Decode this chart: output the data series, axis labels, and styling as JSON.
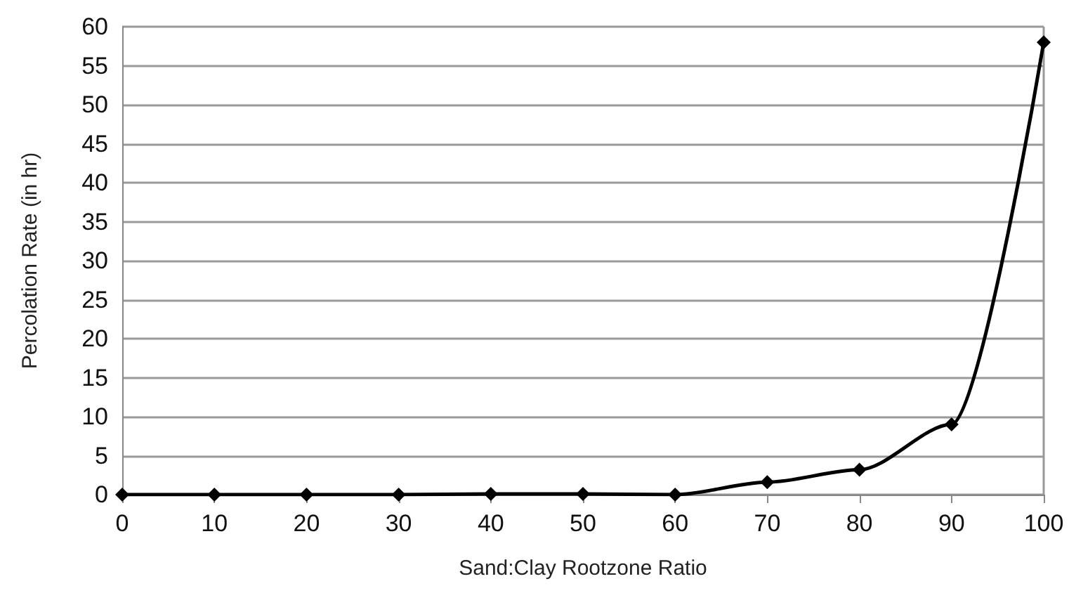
{
  "chart_data": {
    "type": "line",
    "xlabel": "Sand:Clay Rootzone Ratio",
    "ylabel": "Percolation Rate (in hr)",
    "x": [
      0,
      10,
      20,
      30,
      40,
      50,
      60,
      70,
      80,
      90,
      100
    ],
    "series": [
      {
        "color": "#000000",
        "values": [
          0,
          0,
          0,
          0,
          0.1,
          0.1,
          0,
          1.6,
          3.2,
          9,
          58
        ]
      }
    ],
    "xlim": [
      0,
      100
    ],
    "xticks": [
      0,
      10,
      20,
      30,
      40,
      50,
      60,
      70,
      80,
      90,
      100
    ],
    "ylim": [
      0,
      60
    ],
    "yticks": [
      0,
      5,
      10,
      15,
      20,
      25,
      30,
      35,
      40,
      45,
      50,
      55,
      60
    ],
    "grid": "y",
    "marker": "diamond",
    "line_style": "solid"
  }
}
